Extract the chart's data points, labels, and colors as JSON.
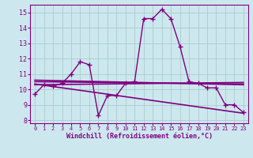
{
  "xlabel": "Windchill (Refroidissement éolien,°C)",
  "background_color": "#cce8ee",
  "line_color": "#800080",
  "grid_color": "#aacccc",
  "xlim": [
    -0.5,
    23.5
  ],
  "ylim": [
    7.8,
    15.5
  ],
  "yticks": [
    8,
    9,
    10,
    11,
    12,
    13,
    14,
    15
  ],
  "xticks": [
    0,
    1,
    2,
    3,
    4,
    5,
    6,
    7,
    8,
    9,
    10,
    11,
    12,
    13,
    14,
    15,
    16,
    17,
    18,
    19,
    20,
    21,
    22,
    23
  ],
  "y_main": [
    9.7,
    10.3,
    10.2,
    10.4,
    11.0,
    11.8,
    11.6,
    8.3,
    9.6,
    9.6,
    10.4,
    10.5,
    14.6,
    14.6,
    15.2,
    14.6,
    12.8,
    10.5,
    10.4,
    10.1,
    10.1,
    9.0,
    9.0,
    8.5
  ],
  "linear_lines": [
    [
      10.3,
      10.45
    ],
    [
      10.6,
      10.3
    ],
    [
      10.5,
      10.35
    ],
    [
      10.35,
      8.45
    ]
  ]
}
